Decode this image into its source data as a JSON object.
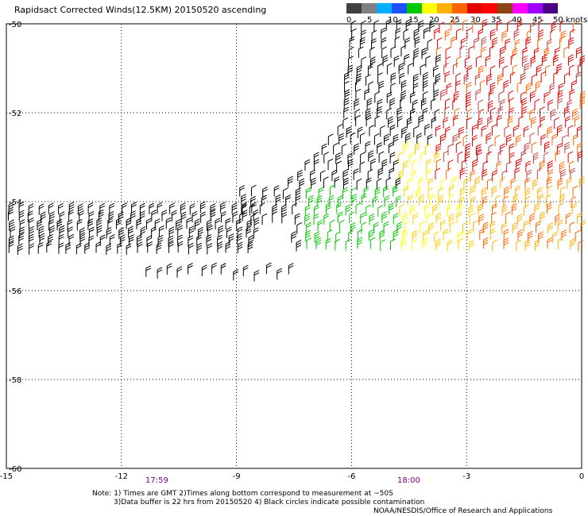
{
  "title": "Rapidsact Corrected Winds(12.5KM) 20150520 ascending",
  "colorbar": {
    "swatches": [
      "#404040",
      "#7f7f7f",
      "#00b0ff",
      "#1e50ff",
      "#00c800",
      "#ffff00",
      "#ffb000",
      "#ff6400",
      "#e00000",
      "#ff0000",
      "#8b4513",
      "#ff00ff",
      "#a000ff",
      "#4b0082"
    ],
    "tick_labels": [
      "0",
      "5",
      "10",
      "15",
      "20",
      "25",
      "30",
      "35",
      "40",
      "45",
      "50 knots"
    ]
  },
  "axes": {
    "lat_labels": [
      "-50",
      "-52",
      "-54",
      "-56",
      "-58",
      "-60"
    ],
    "lon_labels": [
      "-15",
      "-12",
      "-9",
      "-6",
      "-3",
      "0"
    ]
  },
  "times": {
    "left": "17:59",
    "right": "18:00"
  },
  "notes": {
    "line1": "Note: 1) Times are GMT 2)Times along bottom correspond to measurement at ~50S",
    "line2": "3)Data buffer is 22 hrs from 20150520 4) Black circles indicate possible contamination"
  },
  "credit": "NOAA/NESDIS/Office of Research and Applications"
}
